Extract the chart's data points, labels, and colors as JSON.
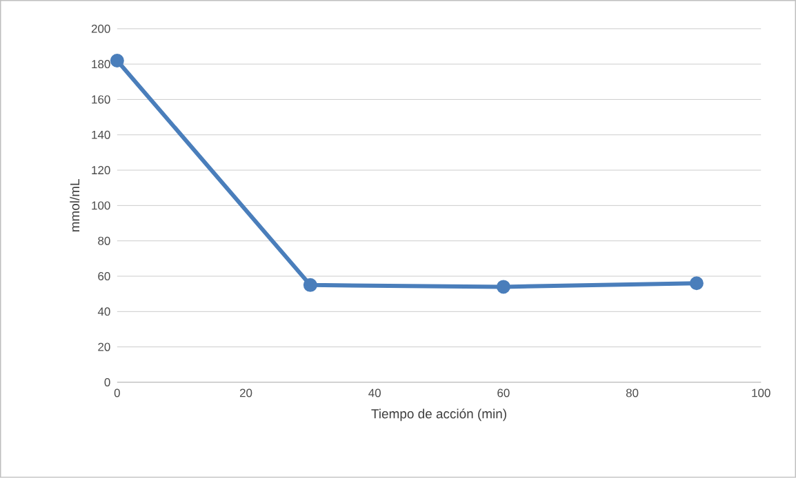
{
  "chart_data": {
    "type": "line",
    "xlabel": "Tiempo de acción (min)",
    "ylabel": "mmol/mL",
    "x": [
      0,
      30,
      60,
      90
    ],
    "series": [
      {
        "color": "#4a7ebb",
        "values": [
          182,
          55,
          54,
          56
        ]
      }
    ],
    "xlim": [
      0,
      100
    ],
    "xticks": [
      0,
      20,
      40,
      60,
      80,
      100
    ],
    "ylim": [
      0,
      200
    ],
    "yticks": [
      0,
      20,
      40,
      60,
      80,
      100,
      120,
      140,
      160,
      180,
      200
    ],
    "grid": "y",
    "marker": "circle",
    "line_style": "solid"
  }
}
